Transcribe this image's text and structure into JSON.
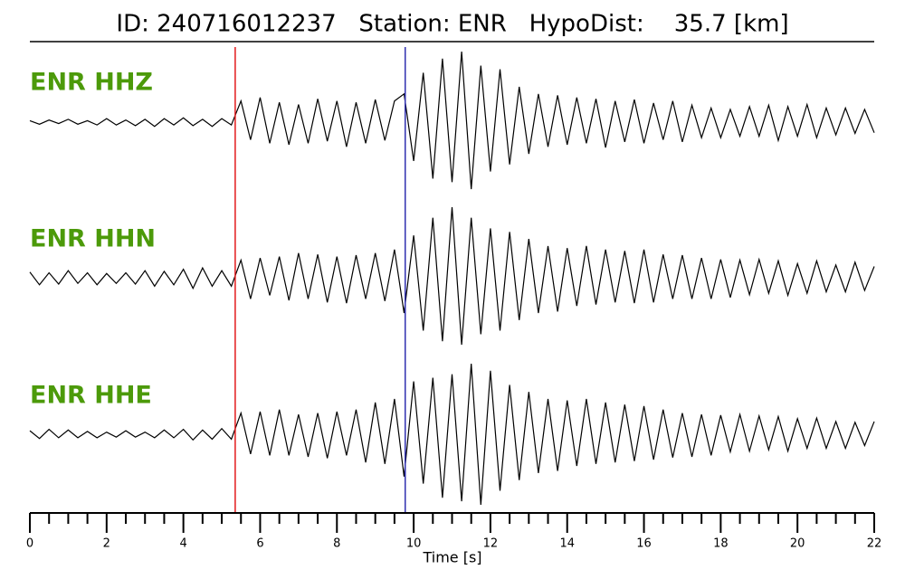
{
  "chart_data": {
    "type": "seismogram",
    "title": "ID: 240716012237   Station: ENR   HypoDist:    35.7 [km]",
    "x_label": "Time [s]",
    "xlim": [
      0,
      22
    ],
    "xticks": [
      0,
      2,
      4,
      6,
      8,
      10,
      12,
      14,
      16,
      18,
      20,
      22
    ],
    "xminorticks": [
      0.5,
      1,
      1.5,
      2.5,
      3,
      3.5,
      4.5,
      5,
      5.5,
      6.5,
      7,
      7.5,
      8.5,
      9,
      9.5,
      10.5,
      11,
      11.5,
      12.5,
      13,
      13.5,
      14.5,
      15,
      15.5,
      16.5,
      17,
      17.5,
      18.5,
      19,
      19.5,
      20.5,
      21,
      21.5
    ],
    "picks": [
      {
        "x": 5.35,
        "color": "#e31a1c"
      },
      {
        "x": 9.78,
        "color": "#3030b0"
      }
    ],
    "x": [
      0,
      0.25,
      0.5,
      0.75,
      1,
      1.25,
      1.5,
      1.75,
      2,
      2.25,
      2.5,
      2.75,
      3,
      3.25,
      3.5,
      3.75,
      4,
      4.25,
      4.5,
      4.75,
      5,
      5.25,
      5.5,
      5.75,
      6,
      6.25,
      6.5,
      6.75,
      7,
      7.25,
      7.5,
      7.75,
      8,
      8.25,
      8.5,
      8.75,
      9,
      9.25,
      9.5,
      9.75,
      10,
      10.25,
      10.5,
      10.75,
      11,
      11.25,
      11.5,
      11.75,
      12,
      12.25,
      12.5,
      12.75,
      13,
      13.25,
      13.5,
      13.75,
      14,
      14.25,
      14.5,
      14.75,
      15,
      15.25,
      15.5,
      15.75,
      16,
      16.25,
      16.5,
      16.75,
      17,
      17.25,
      17.5,
      17.75,
      18,
      18.25,
      18.5,
      18.75,
      19,
      19.25,
      19.5,
      19.75,
      20,
      20.25,
      20.5,
      20.75,
      21,
      21.25,
      21.5,
      21.75,
      22
    ],
    "series": [
      {
        "name": "ENR HHZ",
        "color": "#000000",
        "values": [
          0.02,
          -0.03,
          0.03,
          -0.02,
          0.04,
          -0.03,
          0.02,
          -0.04,
          0.05,
          -0.04,
          0.03,
          -0.05,
          0.04,
          -0.06,
          0.05,
          -0.04,
          0.06,
          -0.05,
          0.04,
          -0.06,
          0.05,
          -0.04,
          0.3,
          -0.25,
          0.35,
          -0.3,
          0.28,
          -0.32,
          0.25,
          -0.3,
          0.33,
          -0.27,
          0.3,
          -0.35,
          0.28,
          -0.3,
          0.32,
          -0.26,
          0.3,
          0.4,
          -0.55,
          0.7,
          -0.8,
          0.9,
          -0.85,
          1.0,
          -0.95,
          0.8,
          -0.7,
          0.75,
          -0.6,
          0.5,
          -0.45,
          0.4,
          -0.35,
          0.38,
          -0.32,
          0.35,
          -0.3,
          0.33,
          -0.36,
          0.3,
          -0.28,
          0.32,
          -0.3,
          0.27,
          -0.25,
          0.3,
          -0.28,
          0.24,
          -0.22,
          0.2,
          -0.22,
          0.18,
          -0.2,
          0.22,
          -0.2,
          0.24,
          -0.26,
          0.22,
          -0.2,
          0.25,
          -0.22,
          0.2,
          -0.18,
          0.2,
          -0.16,
          0.18,
          -0.15
        ]
      },
      {
        "name": "ENR HHN",
        "color": "#000000",
        "values": [
          0.08,
          -0.1,
          0.07,
          -0.09,
          0.1,
          -0.08,
          0.07,
          -0.1,
          0.06,
          -0.08,
          0.07,
          -0.09,
          0.1,
          -0.12,
          0.09,
          -0.1,
          0.12,
          -0.15,
          0.14,
          -0.12,
          0.1,
          -0.12,
          0.25,
          -0.3,
          0.28,
          -0.25,
          0.3,
          -0.32,
          0.35,
          -0.3,
          0.33,
          -0.35,
          0.3,
          -0.36,
          0.32,
          -0.3,
          0.35,
          -0.33,
          0.4,
          -0.5,
          0.6,
          -0.75,
          0.85,
          -0.9,
          1.0,
          -0.95,
          0.85,
          -0.8,
          0.7,
          -0.75,
          0.65,
          -0.6,
          0.55,
          -0.5,
          0.45,
          -0.48,
          0.42,
          -0.4,
          0.45,
          -0.38,
          0.4,
          -0.35,
          0.38,
          -0.36,
          0.4,
          -0.35,
          0.33,
          -0.3,
          0.32,
          -0.3,
          0.28,
          -0.3,
          0.26,
          -0.28,
          0.25,
          -0.24,
          0.26,
          -0.22,
          0.24,
          -0.25,
          0.2,
          -0.22,
          0.24,
          -0.2,
          0.18,
          -0.2,
          0.22,
          -0.18,
          0.16
        ]
      },
      {
        "name": "ENR HHE",
        "color": "#000000",
        "values": [
          0.05,
          -0.06,
          0.07,
          -0.05,
          0.06,
          -0.05,
          0.04,
          -0.05,
          0.03,
          -0.04,
          0.05,
          -0.04,
          0.03,
          -0.05,
          0.06,
          -0.05,
          0.07,
          -0.08,
          0.06,
          -0.07,
          0.08,
          -0.07,
          0.3,
          -0.28,
          0.32,
          -0.3,
          0.35,
          -0.3,
          0.28,
          -0.32,
          0.3,
          -0.34,
          0.32,
          -0.3,
          0.35,
          -0.4,
          0.45,
          -0.42,
          0.5,
          -0.6,
          0.75,
          -0.7,
          0.8,
          -0.9,
          0.85,
          -0.95,
          1.0,
          -1.0,
          0.9,
          -0.8,
          0.7,
          -0.65,
          0.6,
          -0.55,
          0.5,
          -0.52,
          0.48,
          -0.45,
          0.5,
          -0.42,
          0.45,
          -0.4,
          0.42,
          -0.38,
          0.4,
          -0.36,
          0.35,
          -0.33,
          0.3,
          -0.32,
          0.28,
          -0.3,
          0.27,
          -0.25,
          0.28,
          -0.24,
          0.26,
          -0.22,
          0.25,
          -0.24,
          0.22,
          -0.2,
          0.23,
          -0.2,
          0.18,
          -0.2,
          0.17,
          -0.16,
          0.18
        ]
      }
    ]
  }
}
